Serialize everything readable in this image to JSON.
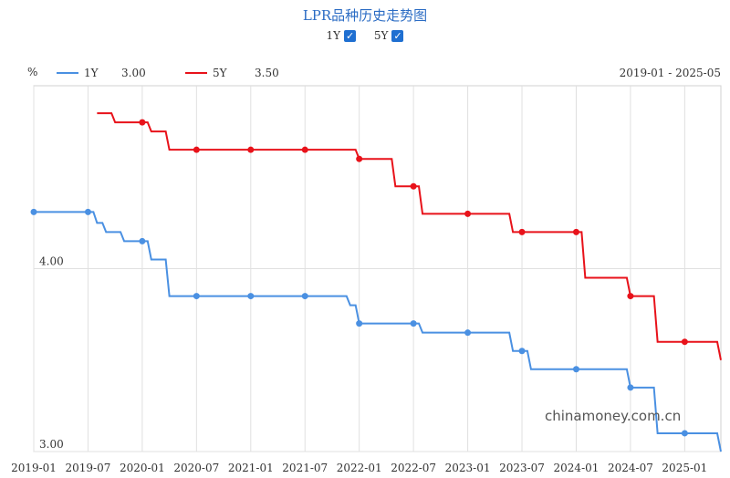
{
  "title": "LPR品种历史走势图",
  "toggles": [
    {
      "label": "1Y",
      "checked": true
    },
    {
      "label": "5Y",
      "checked": true
    }
  ],
  "legend": [
    {
      "name": "1Y",
      "value": "3.00",
      "color": "#4a90e2"
    },
    {
      "name": "5Y",
      "value": "3.50",
      "color": "#e8121a"
    }
  ],
  "unit": "%",
  "range_label": "2019-01 - 2025-05",
  "watermark": "chinamoney.com.cn",
  "chart_data": {
    "type": "line",
    "title": "LPR品种历史走势图",
    "ylabel": "%",
    "xlim": [
      "2019-01",
      "2025-05"
    ],
    "ylim": [
      3.0,
      5.0
    ],
    "y_ticks": [
      3.0,
      4.0
    ],
    "y_tick_labels": [
      "3.00",
      "4.00"
    ],
    "x_ticks": [
      "2019-01",
      "2019-07",
      "2020-01",
      "2020-07",
      "2021-01",
      "2021-07",
      "2022-01",
      "2022-07",
      "2023-01",
      "2023-07",
      "2024-01",
      "2024-07",
      "2025-01"
    ],
    "grid": true,
    "legend_position": "top-left",
    "series": [
      {
        "name": "1Y",
        "color": "#4a90e2",
        "steps": [
          [
            "2019-01",
            4.31
          ],
          [
            "2019-08",
            4.25
          ],
          [
            "2019-09",
            4.2
          ],
          [
            "2019-11",
            4.15
          ],
          [
            "2020-02",
            4.05
          ],
          [
            "2020-04",
            3.85
          ],
          [
            "2021-12",
            3.8
          ],
          [
            "2022-01",
            3.7
          ],
          [
            "2022-08",
            3.65
          ],
          [
            "2023-06",
            3.55
          ],
          [
            "2023-08",
            3.45
          ],
          [
            "2024-07",
            3.35
          ],
          [
            "2024-10",
            3.1
          ],
          [
            "2025-05",
            3.0
          ]
        ]
      },
      {
        "name": "5Y",
        "color": "#e8121a",
        "steps": [
          [
            "2019-08",
            4.85
          ],
          [
            "2019-10",
            4.8
          ],
          [
            "2020-02",
            4.75
          ],
          [
            "2020-04",
            4.65
          ],
          [
            "2022-01",
            4.6
          ],
          [
            "2022-05",
            4.45
          ],
          [
            "2022-08",
            4.3
          ],
          [
            "2023-06",
            4.2
          ],
          [
            "2024-02",
            3.95
          ],
          [
            "2024-07",
            3.85
          ],
          [
            "2024-10",
            3.6
          ],
          [
            "2025-05",
            3.5
          ]
        ]
      }
    ],
    "markers": {
      "1Y": [
        "2019-01",
        "2019-07",
        "2020-01",
        "2020-07",
        "2021-01",
        "2021-07",
        "2022-01",
        "2022-07",
        "2023-01",
        "2023-07",
        "2024-01",
        "2024-07",
        "2025-01"
      ],
      "5Y": [
        "2020-01",
        "2020-07",
        "2021-01",
        "2021-07",
        "2022-01",
        "2022-07",
        "2023-01",
        "2023-07",
        "2024-01",
        "2024-07",
        "2025-01"
      ]
    }
  }
}
